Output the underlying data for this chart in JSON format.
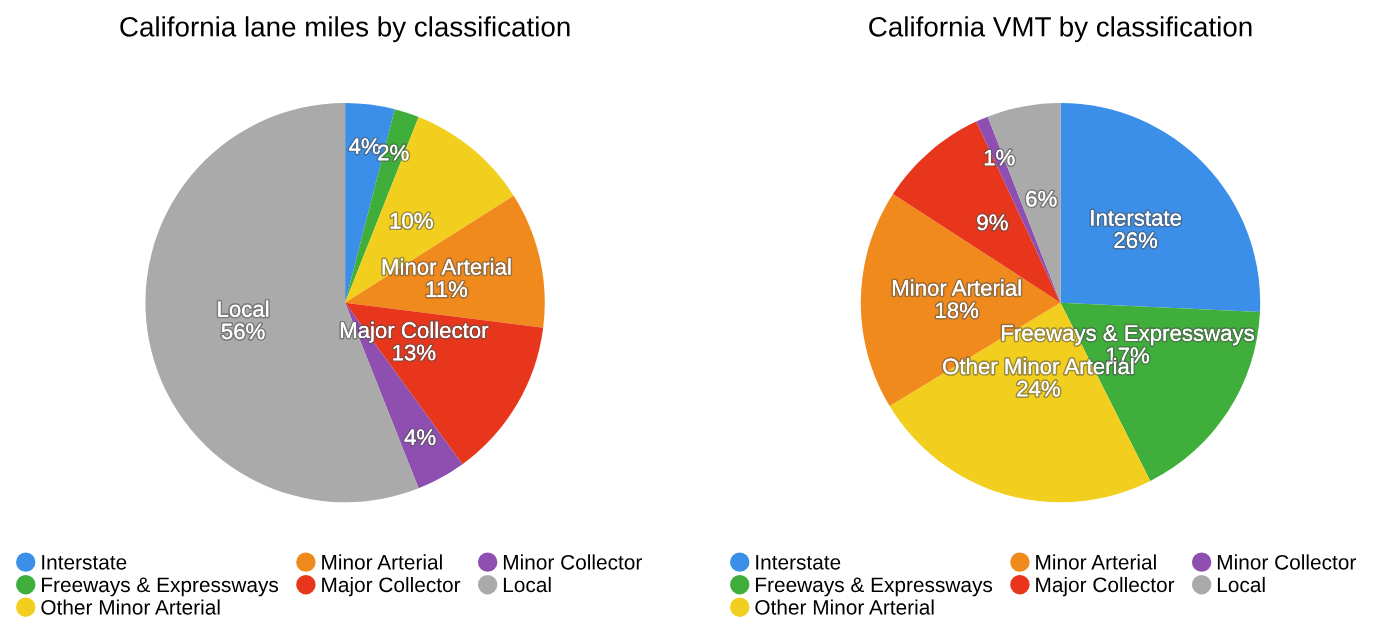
{
  "chart_data": [
    {
      "type": "pie",
      "title": "California lane miles by classification",
      "categories": [
        "Interstate",
        "Freeways & Expressways",
        "Other Minor Arterial",
        "Minor Arterial",
        "Major Collector",
        "Minor Collector",
        "Local"
      ],
      "values": [
        4,
        2,
        10,
        11,
        13,
        4,
        56
      ],
      "colors": [
        "#3b8fe8",
        "#3fae3a",
        "#f2cf1f",
        "#f08a1c",
        "#e8361c",
        "#8e4fb0",
        "#aaaaaa"
      ],
      "value_labels": [
        "4%",
        "2%",
        "10%",
        "Minor Arterial\n11%",
        "Major Collector\n13%",
        "4%",
        "Local\n56%"
      ],
      "legend": "bottom"
    },
    {
      "type": "pie",
      "title": "California VMT by classification",
      "categories": [
        "Interstate",
        "Freeways & Expressways",
        "Other Minor Arterial",
        "Minor Arterial",
        "Major Collector",
        "Minor Collector",
        "Local"
      ],
      "values": [
        26,
        17,
        24,
        18,
        9,
        1,
        6
      ],
      "colors": [
        "#3b8fe8",
        "#3fae3a",
        "#f2cf1f",
        "#f08a1c",
        "#e8361c",
        "#8e4fb0",
        "#aaaaaa"
      ],
      "value_labels": [
        "Interstate\n26%",
        "Freeways & Expressways\n17%",
        "Other Minor Arterial\n24%",
        "Minor Arterial\n18%",
        "9%",
        "1%",
        "6%"
      ],
      "legend": "bottom"
    }
  ]
}
